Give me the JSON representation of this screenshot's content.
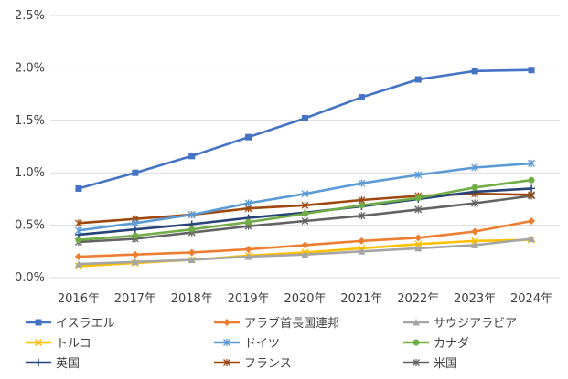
{
  "chart_data": {
    "type": "line",
    "title": "",
    "xlabel": "",
    "ylabel": "",
    "categories": [
      "2016年",
      "2017年",
      "2018年",
      "2019年",
      "2020年",
      "2021年",
      "2022年",
      "2023年",
      "2024年"
    ],
    "ylim": [
      0,
      0.025
    ],
    "yticks": [
      0,
      0.005,
      0.01,
      0.015,
      0.02,
      0.025
    ],
    "ytick_labels": [
      "0.0%",
      "0.5%",
      "1.0%",
      "1.5%",
      "2.0%",
      "2.5%"
    ],
    "grid": "horizontal",
    "legend_position": "bottom",
    "series": [
      {
        "name": "イスラエル",
        "color": "#4472C4",
        "marker": "square",
        "values": [
          0.0085,
          0.01,
          0.0116,
          0.0134,
          0.0152,
          0.0172,
          0.0189,
          0.0197,
          0.0198
        ]
      },
      {
        "name": "アラブ首長国連邦",
        "color": "#ED7D31",
        "marker": "diamond",
        "values": [
          0.002,
          0.0022,
          0.0024,
          0.0027,
          0.0031,
          0.0035,
          0.0038,
          0.0044,
          0.0054
        ]
      },
      {
        "name": "サウジアラビア",
        "color": "#A5A5A5",
        "marker": "triangle",
        "values": [
          0.0013,
          0.0015,
          0.0017,
          0.002,
          0.0022,
          0.0025,
          0.0028,
          0.0031,
          0.0037
        ]
      },
      {
        "name": "トルコ",
        "color": "#FFC000",
        "marker": "x",
        "values": [
          0.0011,
          0.0014,
          0.0017,
          0.0021,
          0.0024,
          0.0028,
          0.0032,
          0.0035,
          0.0036
        ]
      },
      {
        "name": "ドイツ",
        "color": "#5B9BD5",
        "marker": "star",
        "values": [
          0.0045,
          0.0052,
          0.006,
          0.0071,
          0.008,
          0.009,
          0.0098,
          0.0105,
          0.0109
        ]
      },
      {
        "name": "カナダ",
        "color": "#70AD47",
        "marker": "circle",
        "values": [
          0.0036,
          0.004,
          0.0046,
          0.0053,
          0.0061,
          0.0069,
          0.0076,
          0.0086,
          0.0093
        ]
      },
      {
        "name": "英国",
        "color": "#264478",
        "marker": "plus",
        "values": [
          0.0041,
          0.0046,
          0.0051,
          0.0057,
          0.0062,
          0.0068,
          0.0075,
          0.0082,
          0.0085
        ]
      },
      {
        "name": "フランス",
        "color": "#9E480E",
        "marker": "star",
        "values": [
          0.0052,
          0.0056,
          0.006,
          0.0066,
          0.0069,
          0.0074,
          0.0078,
          0.008,
          0.0079
        ]
      },
      {
        "name": "米国",
        "color": "#636363",
        "marker": "star",
        "values": [
          0.0034,
          0.0037,
          0.0043,
          0.0049,
          0.0054,
          0.0059,
          0.0065,
          0.0071,
          0.0078
        ]
      }
    ]
  }
}
